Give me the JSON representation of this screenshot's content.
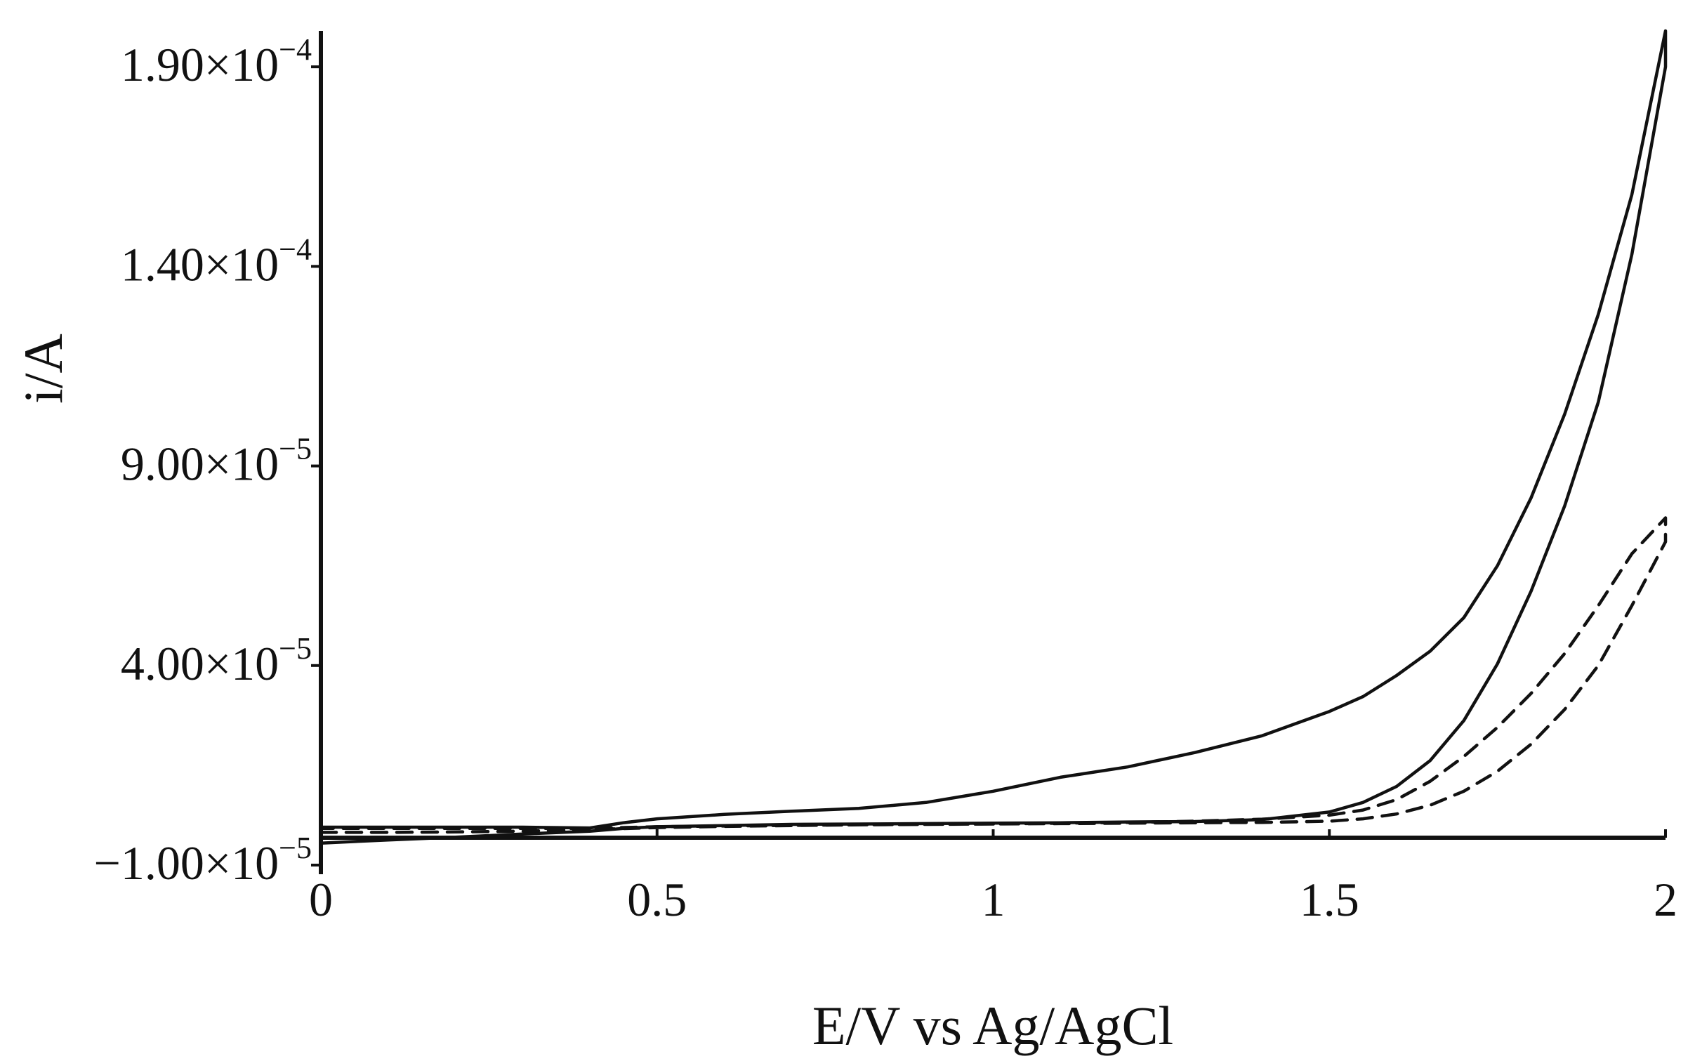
{
  "chart_data": {
    "type": "line",
    "title": "",
    "xlabel": "E/V vs Ag/AgCl",
    "ylabel": "i/A",
    "xlim": [
      0,
      2
    ],
    "ylim": [
      -1e-05,
      0.000199
    ],
    "x_ticks": [
      {
        "value": 0,
        "label": "0"
      },
      {
        "value": 0.5,
        "label": "0.5"
      },
      {
        "value": 1,
        "label": "1"
      },
      {
        "value": 1.5,
        "label": "1.5"
      },
      {
        "value": 2,
        "label": "2"
      }
    ],
    "y_ticks": [
      {
        "value": -1e-05,
        "mantissa": "−1.00×10",
        "exponent": "−5"
      },
      {
        "value": 4e-05,
        "mantissa": "4.00×10",
        "exponent": "−5"
      },
      {
        "value": 9e-05,
        "mantissa": "9.00×10",
        "exponent": "−5"
      },
      {
        "value": 0.00014,
        "mantissa": "1.40×10",
        "exponent": "−4"
      },
      {
        "value": 0.00019,
        "mantissa": "1.90×10",
        "exponent": "−4"
      }
    ],
    "grid": false,
    "legend": "none",
    "series": [
      {
        "style": "solid",
        "color": "#111111",
        "points": [
          [
            0,
            -4.5e-06
          ],
          [
            0.1,
            -3.7e-06
          ],
          [
            0.2,
            -3e-06
          ],
          [
            0.3,
            -2.2e-06
          ],
          [
            0.4,
            -1.5e-06
          ],
          [
            0.45,
            -8e-07
          ],
          [
            0.5,
            -4e-07
          ],
          [
            0.6,
            -1e-07
          ],
          [
            0.7,
            2e-07
          ],
          [
            0.8,
            3e-07
          ],
          [
            0.9,
            4e-07
          ],
          [
            1.0,
            5e-07
          ],
          [
            1.1,
            6e-07
          ],
          [
            1.2,
            8e-07
          ],
          [
            1.3,
            9e-07
          ],
          [
            1.4,
            1.4e-06
          ],
          [
            1.5,
            3.3e-06
          ],
          [
            1.55,
            5.7e-06
          ],
          [
            1.6,
            9.7e-06
          ],
          [
            1.65,
            1.62e-05
          ],
          [
            1.7,
            2.62e-05
          ],
          [
            1.75,
            4.04e-05
          ],
          [
            1.8,
            5.86e-05
          ],
          [
            1.85,
            8e-05
          ],
          [
            1.9,
            0.000106
          ],
          [
            1.95,
            0.000143
          ],
          [
            2.0,
            0.00019
          ],
          [
            2.0,
            0.000199
          ],
          [
            1.95,
            0.000158
          ],
          [
            1.9,
            0.000128
          ],
          [
            1.85,
            0.000103
          ],
          [
            1.8,
            8.2e-05
          ],
          [
            1.75,
            6.5e-05
          ],
          [
            1.7,
            5.2e-05
          ],
          [
            1.65,
            4.36e-05
          ],
          [
            1.6,
            3.75e-05
          ],
          [
            1.55,
            3.22e-05
          ],
          [
            1.5,
            2.85e-05
          ],
          [
            1.4,
            2.24e-05
          ],
          [
            1.3,
            1.82e-05
          ],
          [
            1.2,
            1.46e-05
          ],
          [
            1.1,
            1.2e-05
          ],
          [
            1.0,
            8.5e-06
          ],
          [
            0.9,
            5.7e-06
          ],
          [
            0.8,
            4.2e-06
          ],
          [
            0.7,
            3.5e-06
          ],
          [
            0.6,
            2.7e-06
          ],
          [
            0.5,
            1.6e-06
          ],
          [
            0.45,
            6e-07
          ],
          [
            0.4,
            -7e-07
          ],
          [
            0.3,
            -5e-07
          ],
          [
            0.2,
            -5e-07
          ],
          [
            0.1,
            -5e-07
          ],
          [
            0,
            -5e-07
          ]
        ]
      },
      {
        "style": "dashed",
        "color": "#111111",
        "points": [
          [
            0,
            -1.8e-06
          ],
          [
            0.1,
            -1.8e-06
          ],
          [
            0.2,
            -1.7e-06
          ],
          [
            0.3,
            -1.5e-06
          ],
          [
            0.4,
            -1.1e-06
          ],
          [
            0.5,
            -6e-07
          ],
          [
            0.6,
            -3e-07
          ],
          [
            0.7,
            -1e-07
          ],
          [
            0.8,
            1e-07
          ],
          [
            0.9,
            2e-07
          ],
          [
            1.0,
            3e-07
          ],
          [
            1.1,
            4e-07
          ],
          [
            1.2,
            5e-07
          ],
          [
            1.3,
            6e-07
          ],
          [
            1.4,
            7e-07
          ],
          [
            1.5,
            1e-06
          ],
          [
            1.55,
            1.6e-06
          ],
          [
            1.6,
            2.8e-06
          ],
          [
            1.65,
            5e-06
          ],
          [
            1.7,
            8.5e-06
          ],
          [
            1.75,
            1.35e-05
          ],
          [
            1.8,
            2.03e-05
          ],
          [
            1.85,
            2.9e-05
          ],
          [
            1.9,
            4e-05
          ],
          [
            1.95,
            5.5e-05
          ],
          [
            2.0,
            7.1e-05
          ],
          [
            2.0,
            7.7e-05
          ],
          [
            1.95,
            6.8e-05
          ],
          [
            1.9,
            5.5e-05
          ],
          [
            1.85,
            4.3e-05
          ],
          [
            1.8,
            3.3e-05
          ],
          [
            1.75,
            2.45e-05
          ],
          [
            1.7,
            1.72e-05
          ],
          [
            1.65,
            1.1e-05
          ],
          [
            1.6,
            6.4e-06
          ],
          [
            1.55,
            3.8e-06
          ],
          [
            1.5,
            2.5e-06
          ],
          [
            1.4,
            1.5e-06
          ],
          [
            1.3,
            1e-06
          ],
          [
            1.2,
            7e-07
          ],
          [
            1.1,
            5e-07
          ],
          [
            1.0,
            3e-07
          ],
          [
            0.8,
            1e-07
          ],
          [
            0.6,
            -2e-07
          ],
          [
            0.5,
            -4e-07
          ],
          [
            0.4,
            -8e-07
          ],
          [
            0.2,
            -8e-07
          ],
          [
            0,
            -8e-07
          ]
        ]
      }
    ]
  }
}
